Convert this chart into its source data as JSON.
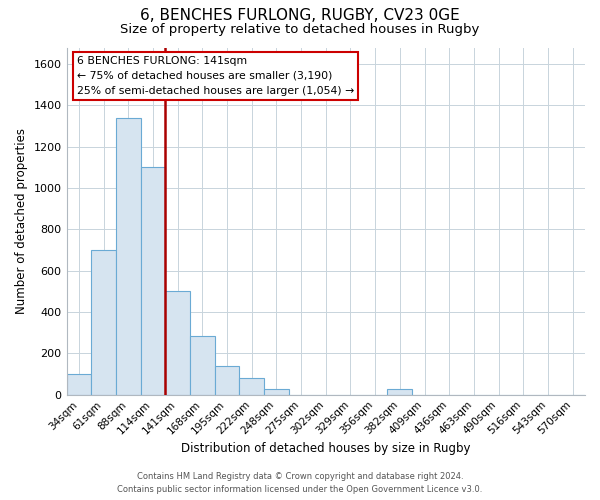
{
  "title": "6, BENCHES FURLONG, RUGBY, CV23 0GE",
  "subtitle": "Size of property relative to detached houses in Rugby",
  "xlabel": "Distribution of detached houses by size in Rugby",
  "ylabel": "Number of detached properties",
  "categories": [
    "34sqm",
    "61sqm",
    "88sqm",
    "114sqm",
    "141sqm",
    "168sqm",
    "195sqm",
    "222sqm",
    "248sqm",
    "275sqm",
    "302sqm",
    "329sqm",
    "356sqm",
    "382sqm",
    "409sqm",
    "436sqm",
    "463sqm",
    "490sqm",
    "516sqm",
    "543sqm",
    "570sqm"
  ],
  "values": [
    100,
    700,
    1340,
    1100,
    500,
    285,
    140,
    80,
    30,
    0,
    0,
    0,
    0,
    30,
    0,
    0,
    0,
    0,
    0,
    0,
    0
  ],
  "bar_color_fill": "#d6e4f0",
  "bar_color_edge": "#6aaad4",
  "highlight_color": "#aa0000",
  "vline_index": 4,
  "ylim": [
    0,
    1680
  ],
  "yticks": [
    0,
    200,
    400,
    600,
    800,
    1000,
    1200,
    1400,
    1600
  ],
  "annotation_title": "6 BENCHES FURLONG: 141sqm",
  "annotation_line1": "← 75% of detached houses are smaller (3,190)",
  "annotation_line2": "25% of semi-detached houses are larger (1,054) →",
  "annotation_box_color": "#ffffff",
  "annotation_box_edge": "#cc0000",
  "footer_line1": "Contains HM Land Registry data © Crown copyright and database right 2024.",
  "footer_line2": "Contains public sector information licensed under the Open Government Licence v3.0.",
  "background_color": "#ffffff",
  "grid_color": "#c8d4dc",
  "title_fontsize": 11,
  "subtitle_fontsize": 9.5
}
